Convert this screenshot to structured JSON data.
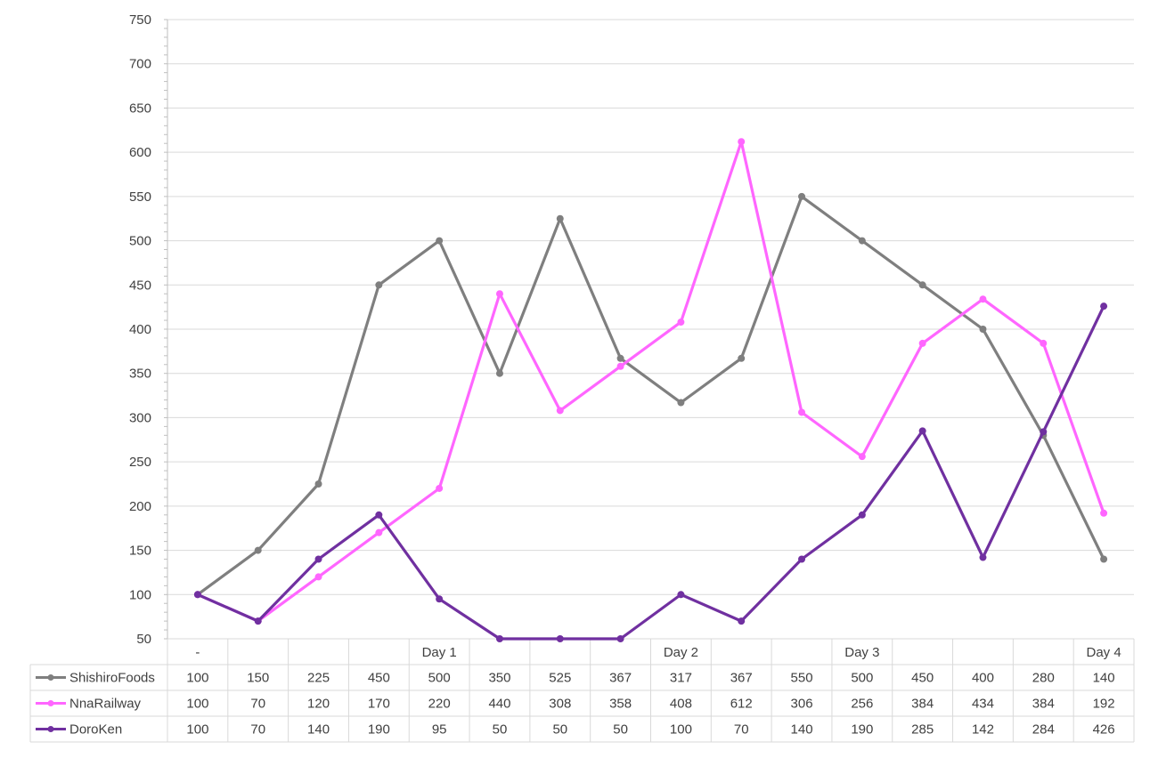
{
  "chart_data": {
    "type": "line",
    "title": "",
    "xlabel": "",
    "ylabel": "",
    "ylim": [
      50,
      750
    ],
    "yticks": [
      50,
      100,
      150,
      200,
      250,
      300,
      350,
      400,
      450,
      500,
      550,
      600,
      650,
      700,
      750
    ],
    "grid": true,
    "legend": "data-table-left",
    "categories": [
      "-",
      "",
      "",
      "",
      "Day 1",
      "",
      "",
      "",
      "Day 2",
      "",
      "",
      "Day 3",
      "",
      "",
      "",
      "Day 4"
    ],
    "series": [
      {
        "name": "ShishiroFoods",
        "color": "#7f7f7f",
        "values": [
          100,
          150,
          225,
          450,
          500,
          350,
          525,
          367,
          317,
          367,
          550,
          500,
          450,
          400,
          280,
          140
        ]
      },
      {
        "name": "NnaRailway",
        "color": "#ff66ff",
        "values": [
          100,
          70,
          120,
          170,
          220,
          440,
          308,
          358,
          408,
          612,
          306,
          256,
          384,
          434,
          384,
          192
        ]
      },
      {
        "name": "DoroKen",
        "color": "#7030a0",
        "values": [
          100,
          70,
          140,
          190,
          95,
          50,
          50,
          50,
          100,
          70,
          140,
          190,
          285,
          142,
          284,
          426
        ]
      }
    ]
  }
}
